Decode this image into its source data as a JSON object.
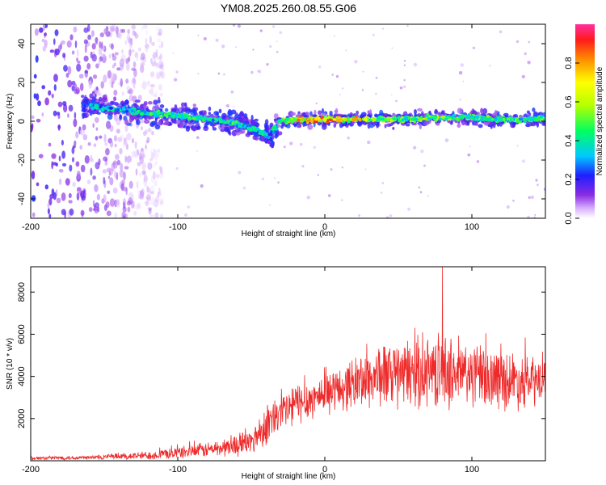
{
  "title": "YM08.2025.260.08.55.G06",
  "chart_data": [
    {
      "type": "heatmap",
      "title": "YM08.2025.260.08.55.G06",
      "xlabel": "Height of straight line (km)",
      "ylabel": "Frequency (Hz)",
      "xlim": [
        -200,
        150
      ],
      "ylim": [
        -50,
        50
      ],
      "xticks": [
        -200,
        -100,
        0,
        100
      ],
      "yticks": [
        -40,
        -20,
        0,
        20,
        40
      ],
      "colorbar": {
        "label": "Normalized spectral amplitude",
        "range": [
          0,
          1
        ],
        "ticks": [
          0.0,
          0.2,
          0.4,
          0.6,
          0.8
        ]
      },
      "ridge": {
        "x": [
          -160,
          -140,
          -120,
          -100,
          -80,
          -60,
          -45,
          -38,
          -30,
          -20,
          0,
          20,
          40,
          60,
          80,
          100,
          120,
          150
        ],
        "freq": [
          8,
          6,
          4,
          3,
          1,
          -1,
          -5,
          -7,
          0,
          1,
          1,
          1,
          1,
          1,
          2,
          2,
          1,
          1
        ],
        "amplitude": [
          0.35,
          0.4,
          0.45,
          0.45,
          0.45,
          0.45,
          0.4,
          0.35,
          0.5,
          0.8,
          0.8,
          0.75,
          0.6,
          0.55,
          0.55,
          0.5,
          0.5,
          0.5
        ]
      },
      "branch": {
        "x": [
          -60,
          -50,
          -40,
          -35
        ],
        "freq": [
          0,
          -4,
          -9,
          -12
        ]
      },
      "noise_region": {
        "x_range": [
          -200,
          -110
        ],
        "freq_range": [
          -50,
          50
        ],
        "amplitude": 0.2
      }
    },
    {
      "type": "line",
      "xlabel": "Height of straight line (km)",
      "ylabel": "SNR (10 * v/v)",
      "xlim": [
        -200,
        150
      ],
      "ylim": [
        0,
        9200
      ],
      "xticks": [
        -200,
        -100,
        0,
        100
      ],
      "yticks": [
        2000,
        4000,
        6000,
        8000
      ],
      "color": "#ee2a2a",
      "envelope": {
        "x": [
          -200,
          -160,
          -120,
          -90,
          -70,
          -50,
          -40,
          -30,
          -20,
          -10,
          0,
          10,
          20,
          30,
          40,
          50,
          60,
          70,
          80,
          90,
          100,
          110,
          120,
          130,
          140,
          150
        ],
        "mean": [
          120,
          150,
          250,
          450,
          600,
          900,
          1700,
          2200,
          2700,
          2900,
          3200,
          3400,
          3700,
          3900,
          4100,
          4000,
          4200,
          4200,
          4300,
          4100,
          4100,
          3900,
          3900,
          3800,
          3700,
          3800
        ],
        "spread": [
          80,
          100,
          200,
          300,
          400,
          600,
          900,
          1000,
          1000,
          900,
          900,
          1000,
          1200,
          1400,
          1500,
          1500,
          1600,
          1600,
          1700,
          1600,
          1500,
          1400,
          1400,
          1300,
          1200,
          1200
        ]
      },
      "peak": {
        "x": 80,
        "y": 9200
      }
    }
  ]
}
